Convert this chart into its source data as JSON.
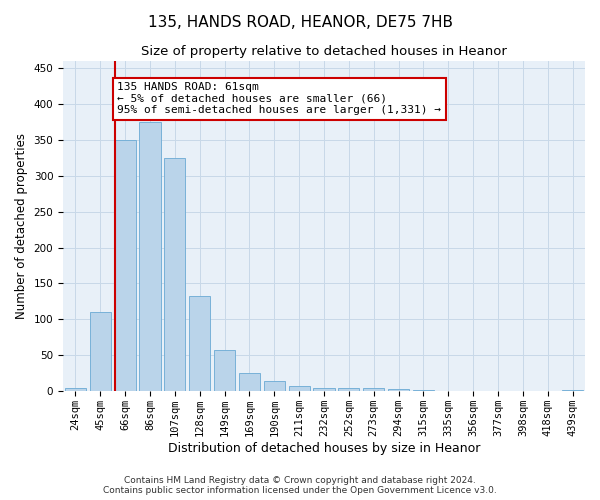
{
  "title": "135, HANDS ROAD, HEANOR, DE75 7HB",
  "subtitle": "Size of property relative to detached houses in Heanor",
  "xlabel": "Distribution of detached houses by size in Heanor",
  "ylabel": "Number of detached properties",
  "bar_color": "#bad4ea",
  "bar_edge_color": "#6aaad4",
  "grid_color": "#c8d8e8",
  "background_color": "#e8f0f8",
  "categories": [
    "24sqm",
    "45sqm",
    "66sqm",
    "86sqm",
    "107sqm",
    "128sqm",
    "149sqm",
    "169sqm",
    "190sqm",
    "211sqm",
    "232sqm",
    "252sqm",
    "273sqm",
    "294sqm",
    "315sqm",
    "335sqm",
    "356sqm",
    "377sqm",
    "398sqm",
    "418sqm",
    "439sqm"
  ],
  "values": [
    4,
    110,
    350,
    375,
    325,
    133,
    57,
    26,
    14,
    7,
    5,
    5,
    5,
    3,
    2,
    1,
    1,
    0,
    0,
    0,
    2
  ],
  "ylim": [
    0,
    460
  ],
  "yticks": [
    0,
    50,
    100,
    150,
    200,
    250,
    300,
    350,
    400,
    450
  ],
  "red_line_index": 2,
  "annotation_line1": "135 HANDS ROAD: 61sqm",
  "annotation_line2": "← 5% of detached houses are smaller (66)",
  "annotation_line3": "95% of semi-detached houses are larger (1,331) →",
  "annotation_box_color": "#ffffff",
  "annotation_box_edge": "#cc0000",
  "red_line_color": "#cc0000",
  "footer_line1": "Contains HM Land Registry data © Crown copyright and database right 2024.",
  "footer_line2": "Contains public sector information licensed under the Open Government Licence v3.0.",
  "title_fontsize": 11,
  "subtitle_fontsize": 9.5,
  "xlabel_fontsize": 9,
  "ylabel_fontsize": 8.5,
  "annotation_fontsize": 8,
  "tick_fontsize": 7.5,
  "footer_fontsize": 6.5
}
